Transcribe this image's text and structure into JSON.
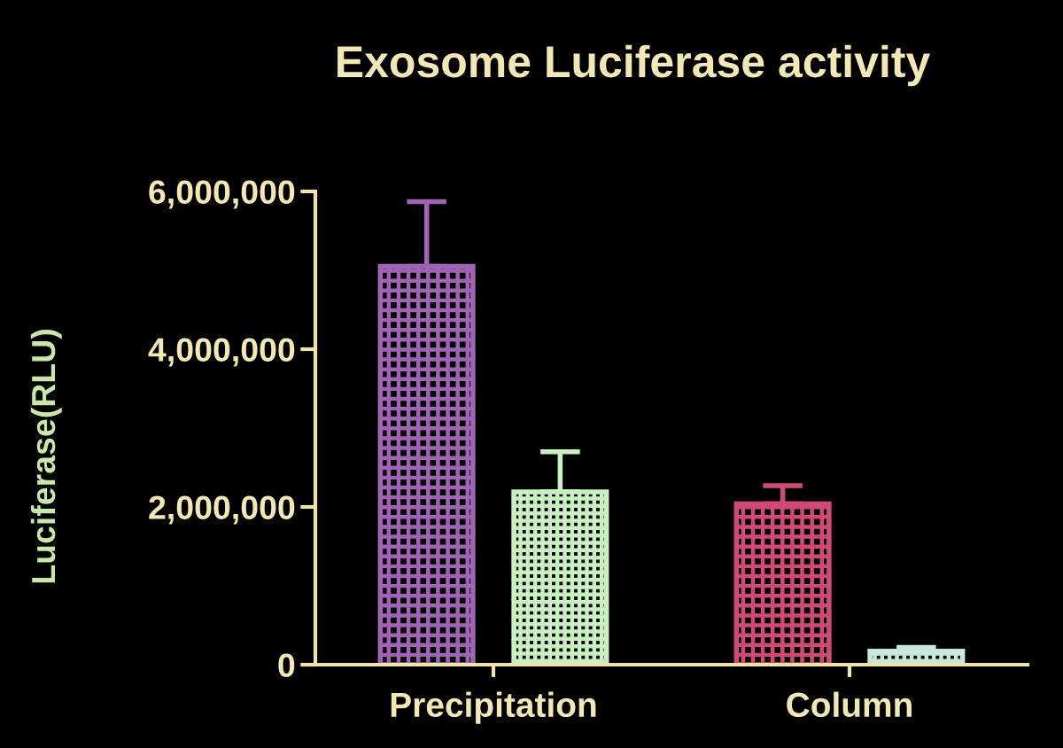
{
  "chart_data": {
    "type": "bar",
    "title": "Exosome Luciferase activity",
    "ylabel": "Luciferase(RLU)",
    "categories": [
      "Precipitation",
      "Column"
    ],
    "series": [
      {
        "colors": [
          "#a064b4",
          "#d04a78"
        ],
        "values": [
          5050000,
          2040000
        ],
        "errors": [
          [
            5050000,
            5870000
          ],
          [
            2040000,
            2270000
          ]
        ]
      },
      {
        "colors": [
          "#c8f0c0",
          "#c8e8dc"
        ],
        "values": [
          2190000,
          170000
        ],
        "errors": [
          [
            2190000,
            2700000
          ],
          [
            170000,
            220000
          ]
        ]
      }
    ],
    "ylim": [
      0,
      6000000
    ],
    "yticks": [
      0,
      {
        "value": 2000000,
        "label": "2,000,000"
      },
      {
        "value": 4000000,
        "label": "4,000,000"
      },
      {
        "value": 6000000,
        "label": "6,000,000"
      }
    ]
  }
}
